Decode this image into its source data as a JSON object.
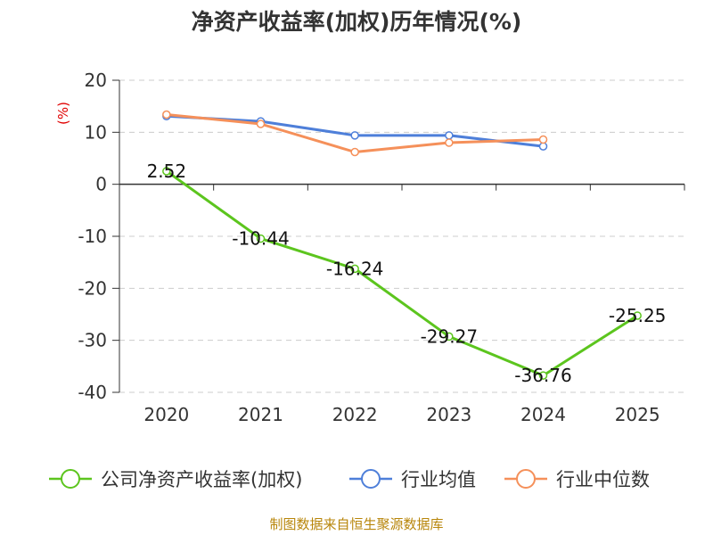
{
  "chart_data": {
    "type": "line",
    "title": "净资产收益率(加权)历年情况(%)",
    "ylabel": "(%)",
    "xlabel": "",
    "categories": [
      "2020",
      "2021",
      "2022",
      "2023",
      "2024",
      "2025"
    ],
    "ylim": [
      -40,
      20
    ],
    "yticks": [
      20,
      10,
      0,
      -10,
      -20,
      -30,
      -40
    ],
    "grid": true,
    "legend_position": "bottom",
    "series": [
      {
        "name": "公司净资产收益率(加权)",
        "color": "#5cc51e",
        "values": [
          2.52,
          -10.44,
          -16.24,
          -29.27,
          -36.76,
          -25.25
        ],
        "labels": [
          "2.52",
          "-10.44",
          "-16.24",
          "-29.27",
          "-36.76",
          "-25.25"
        ]
      },
      {
        "name": "行业均值",
        "color": "#4e7fd9",
        "values": [
          13.1,
          12.1,
          9.4,
          9.4,
          7.3,
          null
        ]
      },
      {
        "name": "行业中位数",
        "color": "#f5905a",
        "values": [
          13.4,
          11.6,
          6.2,
          8.0,
          8.6,
          null
        ]
      }
    ]
  },
  "footer": "制图数据来自恒生聚源数据库"
}
